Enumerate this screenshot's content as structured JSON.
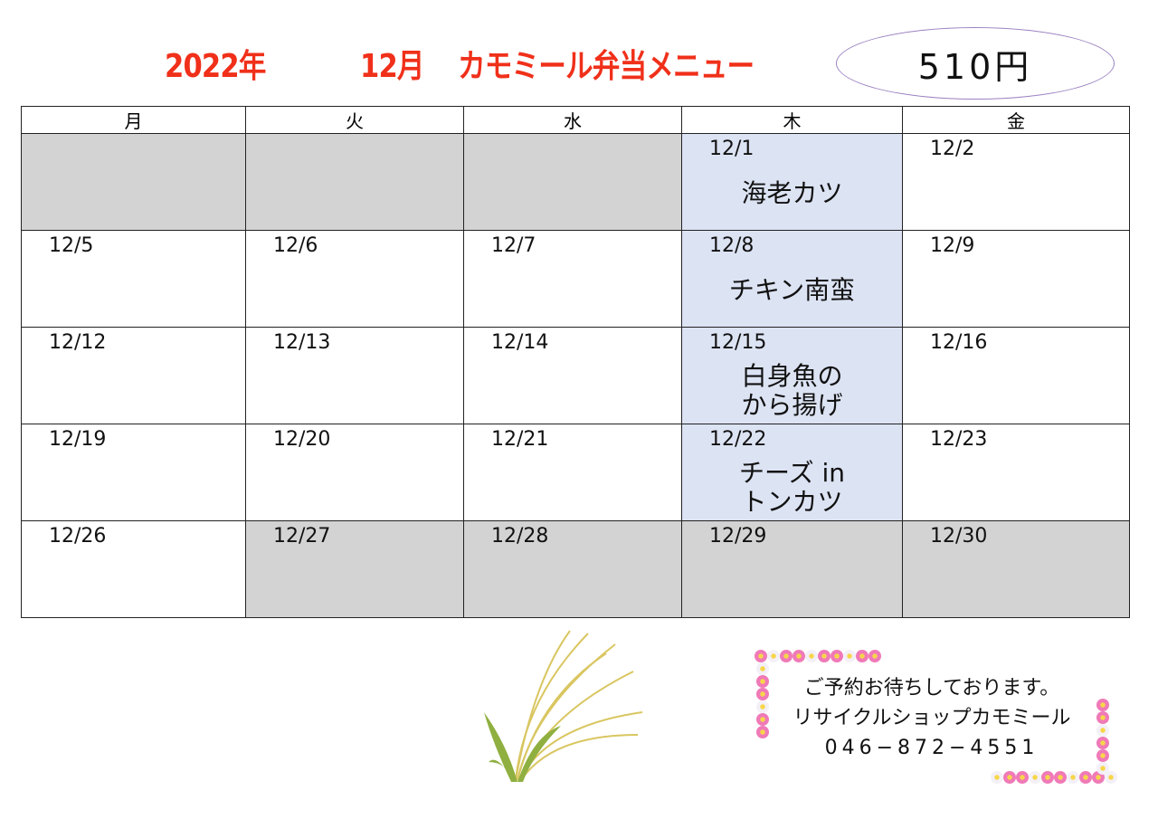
{
  "header": {
    "year": "2022年",
    "month": "12月",
    "title": "カモミール弁当メニュー",
    "price": "510円"
  },
  "weekdays": [
    "月",
    "火",
    "水",
    "木",
    "金"
  ],
  "rows": [
    [
      {
        "date": "",
        "menu": "",
        "bg": "gray"
      },
      {
        "date": "",
        "menu": "",
        "bg": "gray"
      },
      {
        "date": "",
        "menu": "",
        "bg": "gray"
      },
      {
        "date": "12/1",
        "menu": "海老カツ",
        "bg": "blue"
      },
      {
        "date": "12/2",
        "menu": "",
        "bg": "white"
      }
    ],
    [
      {
        "date": "12/5",
        "menu": "",
        "bg": "white"
      },
      {
        "date": "12/6",
        "menu": "",
        "bg": "white"
      },
      {
        "date": "12/7",
        "menu": "",
        "bg": "white"
      },
      {
        "date": "12/8",
        "menu": "チキン南蛮",
        "bg": "blue"
      },
      {
        "date": "12/9",
        "menu": "",
        "bg": "white"
      }
    ],
    [
      {
        "date": "12/12",
        "menu": "",
        "bg": "white"
      },
      {
        "date": "12/13",
        "menu": "",
        "bg": "white"
      },
      {
        "date": "12/14",
        "menu": "",
        "bg": "white"
      },
      {
        "date": "12/15",
        "menu": "白身魚の\nから揚げ",
        "bg": "blue"
      },
      {
        "date": "12/16",
        "menu": "",
        "bg": "white"
      }
    ],
    [
      {
        "date": "12/19",
        "menu": "",
        "bg": "white"
      },
      {
        "date": "12/20",
        "menu": "",
        "bg": "white"
      },
      {
        "date": "12/21",
        "menu": "",
        "bg": "white"
      },
      {
        "date": "12/22",
        "menu": "チーズ in\nトンカツ",
        "bg": "blue"
      },
      {
        "date": "12/23",
        "menu": "",
        "bg": "white"
      }
    ],
    [
      {
        "date": "12/26",
        "menu": "",
        "bg": "white"
      },
      {
        "date": "12/27",
        "menu": "",
        "bg": "gray"
      },
      {
        "date": "12/28",
        "menu": "",
        "bg": "gray"
      },
      {
        "date": "12/29",
        "menu": "",
        "bg": "gray"
      },
      {
        "date": "12/30",
        "menu": "",
        "bg": "gray"
      }
    ]
  ],
  "colors": {
    "title": "#f0301a",
    "gray": "#d3d3d3",
    "blue": "#dce3f3"
  },
  "footer": {
    "line1": "ご予約お待ちしております。",
    "line2": "リサイクルショップカモミール",
    "phone": "046−872−4551",
    "decoration": [
      "pampas-grass-icon",
      "cosmos-flower-frame"
    ]
  }
}
